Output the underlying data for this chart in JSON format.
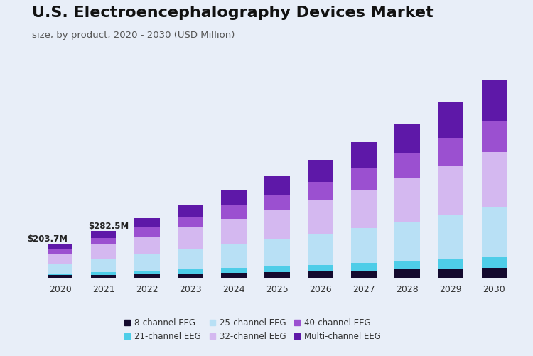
{
  "title": "U.S. Electroencephalography Devices Market",
  "subtitle": "size, by product, 2020 - 2030 (USD Million)",
  "years": [
    2020,
    2021,
    2022,
    2023,
    2024,
    2025,
    2026,
    2027,
    2028,
    2029,
    2030
  ],
  "annotations": {
    "2020": "$203.7M",
    "2021": "$282.5M"
  },
  "segments": {
    "8-channel EEG": [
      15,
      18,
      22,
      26,
      30,
      34,
      39,
      44,
      49,
      55,
      61
    ],
    "21-channel EEG": [
      10,
      14,
      18,
      23,
      28,
      33,
      38,
      44,
      51,
      58,
      66
    ],
    "25-channel EEG": [
      60,
      82,
      102,
      122,
      142,
      163,
      186,
      212,
      238,
      268,
      300
    ],
    "32-channel EEG": [
      62,
      86,
      108,
      132,
      155,
      178,
      204,
      232,
      263,
      296,
      332
    ],
    "40-channel EEG": [
      28,
      40,
      53,
      67,
      81,
      96,
      112,
      130,
      149,
      170,
      192
    ],
    "Multi-channel EEG": [
      29,
      43,
      58,
      74,
      92,
      112,
      134,
      158,
      184,
      213,
      244
    ]
  },
  "colors": {
    "8-channel EEG": "#140a2e",
    "21-channel EEG": "#4ecde8",
    "25-channel EEG": "#b8e0f5",
    "32-channel EEG": "#d4b8f0",
    "40-channel EEG": "#9b50d0",
    "Multi-channel EEG": "#5e18a8"
  },
  "background_color": "#e8eef8",
  "title_fontsize": 16,
  "subtitle_fontsize": 9.5,
  "ylim": [
    0,
    1250
  ]
}
